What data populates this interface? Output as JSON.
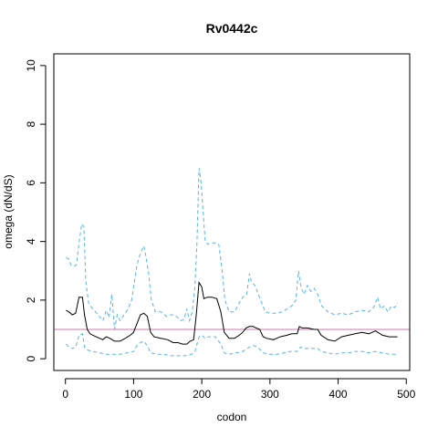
{
  "chart_data": {
    "type": "line",
    "title": "Rv0442c",
    "xlabel": "codon",
    "ylabel": "omega (dN/dS)",
    "xlim": [
      -17,
      505
    ],
    "ylim": [
      -0.4,
      10.4
    ],
    "xticks": [
      0,
      100,
      200,
      300,
      400,
      500
    ],
    "yticks": [
      0,
      2,
      4,
      6,
      8,
      10
    ],
    "grid": false,
    "reference_line": {
      "y": 1,
      "color": "#cc79a7"
    },
    "series": [
      {
        "color": "#000000",
        "style": "solid",
        "points": [
          [
            1,
            1.65
          ],
          [
            5,
            1.6
          ],
          [
            10,
            1.5
          ],
          [
            15,
            1.55
          ],
          [
            20,
            2.1
          ],
          [
            25,
            2.1
          ],
          [
            28,
            1.5
          ],
          [
            32,
            1.0
          ],
          [
            36,
            0.85
          ],
          [
            45,
            0.75
          ],
          [
            55,
            0.65
          ],
          [
            60,
            0.75
          ],
          [
            65,
            0.7
          ],
          [
            72,
            0.6
          ],
          [
            80,
            0.6
          ],
          [
            88,
            0.7
          ],
          [
            95,
            0.8
          ],
          [
            100,
            0.9
          ],
          [
            105,
            1.2
          ],
          [
            110,
            1.5
          ],
          [
            115,
            1.55
          ],
          [
            120,
            1.45
          ],
          [
            125,
            0.9
          ],
          [
            130,
            0.75
          ],
          [
            140,
            0.7
          ],
          [
            150,
            0.65
          ],
          [
            158,
            0.55
          ],
          [
            165,
            0.55
          ],
          [
            172,
            0.5
          ],
          [
            178,
            0.5
          ],
          [
            183,
            0.6
          ],
          [
            188,
            0.65
          ],
          [
            192,
            1.5
          ],
          [
            196,
            2.6
          ],
          [
            200,
            2.45
          ],
          [
            203,
            2.05
          ],
          [
            208,
            2.1
          ],
          [
            215,
            2.1
          ],
          [
            222,
            2.05
          ],
          [
            228,
            1.6
          ],
          [
            233,
            0.9
          ],
          [
            240,
            0.7
          ],
          [
            248,
            0.7
          ],
          [
            255,
            0.8
          ],
          [
            260,
            0.9
          ],
          [
            265,
            1.05
          ],
          [
            270,
            1.1
          ],
          [
            275,
            1.1
          ],
          [
            280,
            1.05
          ],
          [
            285,
            1.0
          ],
          [
            290,
            0.75
          ],
          [
            295,
            0.7
          ],
          [
            305,
            0.65
          ],
          [
            315,
            0.75
          ],
          [
            325,
            0.8
          ],
          [
            332,
            0.85
          ],
          [
            340,
            0.85
          ],
          [
            343,
            1.1
          ],
          [
            347,
            1.05
          ],
          [
            355,
            1.05
          ],
          [
            365,
            1.0
          ],
          [
            370,
            1.0
          ],
          [
            375,
            0.8
          ],
          [
            385,
            0.65
          ],
          [
            395,
            0.6
          ],
          [
            405,
            0.75
          ],
          [
            415,
            0.8
          ],
          [
            425,
            0.85
          ],
          [
            435,
            0.9
          ],
          [
            445,
            0.85
          ],
          [
            455,
            0.95
          ],
          [
            465,
            0.8
          ],
          [
            475,
            0.75
          ],
          [
            487,
            0.75
          ]
        ]
      },
      {
        "color": "#56b4e9",
        "style": "dashed",
        "points": [
          [
            1,
            3.45
          ],
          [
            5,
            3.4
          ],
          [
            8,
            3.2
          ],
          [
            12,
            3.15
          ],
          [
            16,
            3.2
          ],
          [
            20,
            3.95
          ],
          [
            24,
            4.6
          ],
          [
            27,
            4.5
          ],
          [
            30,
            2.6
          ],
          [
            34,
            1.9
          ],
          [
            40,
            1.7
          ],
          [
            48,
            1.5
          ],
          [
            55,
            1.3
          ],
          [
            60,
            1.65
          ],
          [
            64,
            1.4
          ],
          [
            68,
            2.2
          ],
          [
            72,
            1.0
          ],
          [
            76,
            1.5
          ],
          [
            80,
            1.3
          ],
          [
            86,
            1.5
          ],
          [
            92,
            1.7
          ],
          [
            97,
            2.0
          ],
          [
            101,
            2.6
          ],
          [
            105,
            3.2
          ],
          [
            110,
            3.6
          ],
          [
            115,
            3.85
          ],
          [
            118,
            3.5
          ],
          [
            122,
            2.9
          ],
          [
            126,
            2.0
          ],
          [
            132,
            1.6
          ],
          [
            140,
            1.6
          ],
          [
            148,
            1.45
          ],
          [
            155,
            1.5
          ],
          [
            160,
            1.5
          ],
          [
            165,
            1.4
          ],
          [
            170,
            1.3
          ],
          [
            174,
            1.35
          ],
          [
            178,
            1.7
          ],
          [
            182,
            1.3
          ],
          [
            186,
            1.6
          ],
          [
            190,
            2.5
          ],
          [
            193,
            4.0
          ],
          [
            196,
            6.5
          ],
          [
            199,
            6.0
          ],
          [
            202,
            5.0
          ],
          [
            205,
            4.0
          ],
          [
            209,
            3.9
          ],
          [
            214,
            3.95
          ],
          [
            220,
            3.95
          ],
          [
            225,
            3.9
          ],
          [
            230,
            3.0
          ],
          [
            234,
            2.0
          ],
          [
            240,
            1.6
          ],
          [
            248,
            1.6
          ],
          [
            255,
            1.9
          ],
          [
            260,
            2.1
          ],
          [
            266,
            2.2
          ],
          [
            270,
            2.9
          ],
          [
            273,
            2.6
          ],
          [
            278,
            2.5
          ],
          [
            283,
            2.2
          ],
          [
            288,
            1.9
          ],
          [
            293,
            1.6
          ],
          [
            300,
            1.55
          ],
          [
            310,
            1.55
          ],
          [
            318,
            1.6
          ],
          [
            325,
            1.7
          ],
          [
            332,
            1.8
          ],
          [
            338,
            2.0
          ],
          [
            342,
            3.0
          ],
          [
            346,
            2.4
          ],
          [
            350,
            2.2
          ],
          [
            355,
            2.5
          ],
          [
            360,
            2.3
          ],
          [
            365,
            2.4
          ],
          [
            370,
            2.2
          ],
          [
            376,
            1.8
          ],
          [
            385,
            1.6
          ],
          [
            395,
            1.5
          ],
          [
            405,
            1.55
          ],
          [
            415,
            1.5
          ],
          [
            425,
            1.6
          ],
          [
            435,
            1.65
          ],
          [
            445,
            1.6
          ],
          [
            452,
            1.75
          ],
          [
            458,
            2.1
          ],
          [
            462,
            1.7
          ],
          [
            468,
            1.8
          ],
          [
            473,
            1.6
          ],
          [
            478,
            1.8
          ],
          [
            483,
            1.75
          ],
          [
            487,
            1.9
          ]
        ]
      },
      {
        "color": "#56b4e9",
        "style": "dashed",
        "points": [
          [
            1,
            0.5
          ],
          [
            5,
            0.4
          ],
          [
            10,
            0.35
          ],
          [
            15,
            0.4
          ],
          [
            20,
            0.8
          ],
          [
            25,
            0.85
          ],
          [
            28,
            0.4
          ],
          [
            32,
            0.3
          ],
          [
            40,
            0.25
          ],
          [
            50,
            0.2
          ],
          [
            60,
            0.15
          ],
          [
            70,
            0.15
          ],
          [
            80,
            0.15
          ],
          [
            90,
            0.2
          ],
          [
            100,
            0.25
          ],
          [
            105,
            0.45
          ],
          [
            110,
            0.55
          ],
          [
            115,
            0.6
          ],
          [
            120,
            0.45
          ],
          [
            125,
            0.2
          ],
          [
            135,
            0.15
          ],
          [
            145,
            0.15
          ],
          [
            155,
            0.1
          ],
          [
            165,
            0.1
          ],
          [
            175,
            0.1
          ],
          [
            185,
            0.15
          ],
          [
            190,
            0.25
          ],
          [
            196,
            0.75
          ],
          [
            200,
            0.8
          ],
          [
            205,
            0.7
          ],
          [
            210,
            0.75
          ],
          [
            220,
            0.75
          ],
          [
            228,
            0.5
          ],
          [
            233,
            0.2
          ],
          [
            240,
            0.15
          ],
          [
            250,
            0.2
          ],
          [
            260,
            0.25
          ],
          [
            270,
            0.4
          ],
          [
            276,
            0.45
          ],
          [
            282,
            0.4
          ],
          [
            290,
            0.2
          ],
          [
            300,
            0.15
          ],
          [
            310,
            0.15
          ],
          [
            320,
            0.2
          ],
          [
            330,
            0.25
          ],
          [
            340,
            0.25
          ],
          [
            345,
            0.4
          ],
          [
            350,
            0.35
          ],
          [
            360,
            0.35
          ],
          [
            370,
            0.35
          ],
          [
            375,
            0.25
          ],
          [
            385,
            0.2
          ],
          [
            395,
            0.15
          ],
          [
            405,
            0.2
          ],
          [
            415,
            0.2
          ],
          [
            425,
            0.25
          ],
          [
            435,
            0.25
          ],
          [
            445,
            0.2
          ],
          [
            455,
            0.25
          ],
          [
            465,
            0.2
          ],
          [
            475,
            0.15
          ],
          [
            487,
            0.15
          ]
        ]
      }
    ]
  }
}
